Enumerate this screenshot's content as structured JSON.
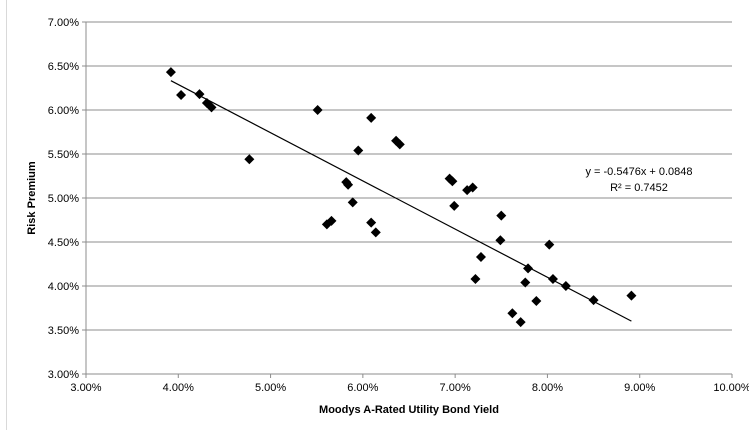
{
  "chart_data": {
    "type": "scatter",
    "xlabel": "Moodys A-Rated Utility Bond Yield",
    "ylabel": "Risk Premium",
    "xlim": [
      0.03,
      0.1
    ],
    "ylim": [
      0.03,
      0.07
    ],
    "x_ticks": [
      0.03,
      0.04,
      0.05,
      0.06,
      0.07,
      0.08,
      0.09,
      0.1
    ],
    "x_tick_labels": [
      "3.00%",
      "4.00%",
      "5.00%",
      "6.00%",
      "7.00%",
      "8.00%",
      "9.00%",
      "10.00%"
    ],
    "y_ticks": [
      0.03,
      0.035,
      0.04,
      0.045,
      0.05,
      0.055,
      0.06,
      0.065,
      0.07
    ],
    "y_tick_labels": [
      "3.00%",
      "3.50%",
      "4.00%",
      "4.50%",
      "5.00%",
      "5.50%",
      "6.00%",
      "6.50%",
      "7.00%"
    ],
    "grid": "horizontal",
    "marker": "diamond",
    "marker_color": "#000000",
    "points": [
      {
        "x": 0.0392,
        "y": 0.0643
      },
      {
        "x": 0.0403,
        "y": 0.0617
      },
      {
        "x": 0.0423,
        "y": 0.0618
      },
      {
        "x": 0.0431,
        "y": 0.0608
      },
      {
        "x": 0.0436,
        "y": 0.0603
      },
      {
        "x": 0.0477,
        "y": 0.0544
      },
      {
        "x": 0.0551,
        "y": 0.06
      },
      {
        "x": 0.0561,
        "y": 0.047
      },
      {
        "x": 0.0566,
        "y": 0.0474
      },
      {
        "x": 0.0582,
        "y": 0.0518
      },
      {
        "x": 0.0584,
        "y": 0.0515
      },
      {
        "x": 0.0589,
        "y": 0.0495
      },
      {
        "x": 0.0595,
        "y": 0.0554
      },
      {
        "x": 0.0609,
        "y": 0.0591
      },
      {
        "x": 0.0609,
        "y": 0.0472
      },
      {
        "x": 0.0614,
        "y": 0.0461
      },
      {
        "x": 0.0636,
        "y": 0.0565
      },
      {
        "x": 0.064,
        "y": 0.0561
      },
      {
        "x": 0.0694,
        "y": 0.0522
      },
      {
        "x": 0.0697,
        "y": 0.0519
      },
      {
        "x": 0.0699,
        "y": 0.0491
      },
      {
        "x": 0.0713,
        "y": 0.0509
      },
      {
        "x": 0.0719,
        "y": 0.0512
      },
      {
        "x": 0.0722,
        "y": 0.0408
      },
      {
        "x": 0.0728,
        "y": 0.0433
      },
      {
        "x": 0.0749,
        "y": 0.0452
      },
      {
        "x": 0.075,
        "y": 0.048
      },
      {
        "x": 0.0762,
        "y": 0.0369
      },
      {
        "x": 0.0771,
        "y": 0.0359
      },
      {
        "x": 0.0776,
        "y": 0.0404
      },
      {
        "x": 0.0779,
        "y": 0.042
      },
      {
        "x": 0.0788,
        "y": 0.0383
      },
      {
        "x": 0.0802,
        "y": 0.0447
      },
      {
        "x": 0.0806,
        "y": 0.0408
      },
      {
        "x": 0.082,
        "y": 0.04
      },
      {
        "x": 0.085,
        "y": 0.0384
      },
      {
        "x": 0.0891,
        "y": 0.0389
      }
    ],
    "trendline": {
      "slope": -0.5476,
      "intercept": 0.0848,
      "x_range": [
        0.0392,
        0.0891
      ],
      "color": "#000000",
      "equation_label": "y = -0.5476x + 0.0848",
      "r2_label": "R² = 0.7452"
    }
  }
}
